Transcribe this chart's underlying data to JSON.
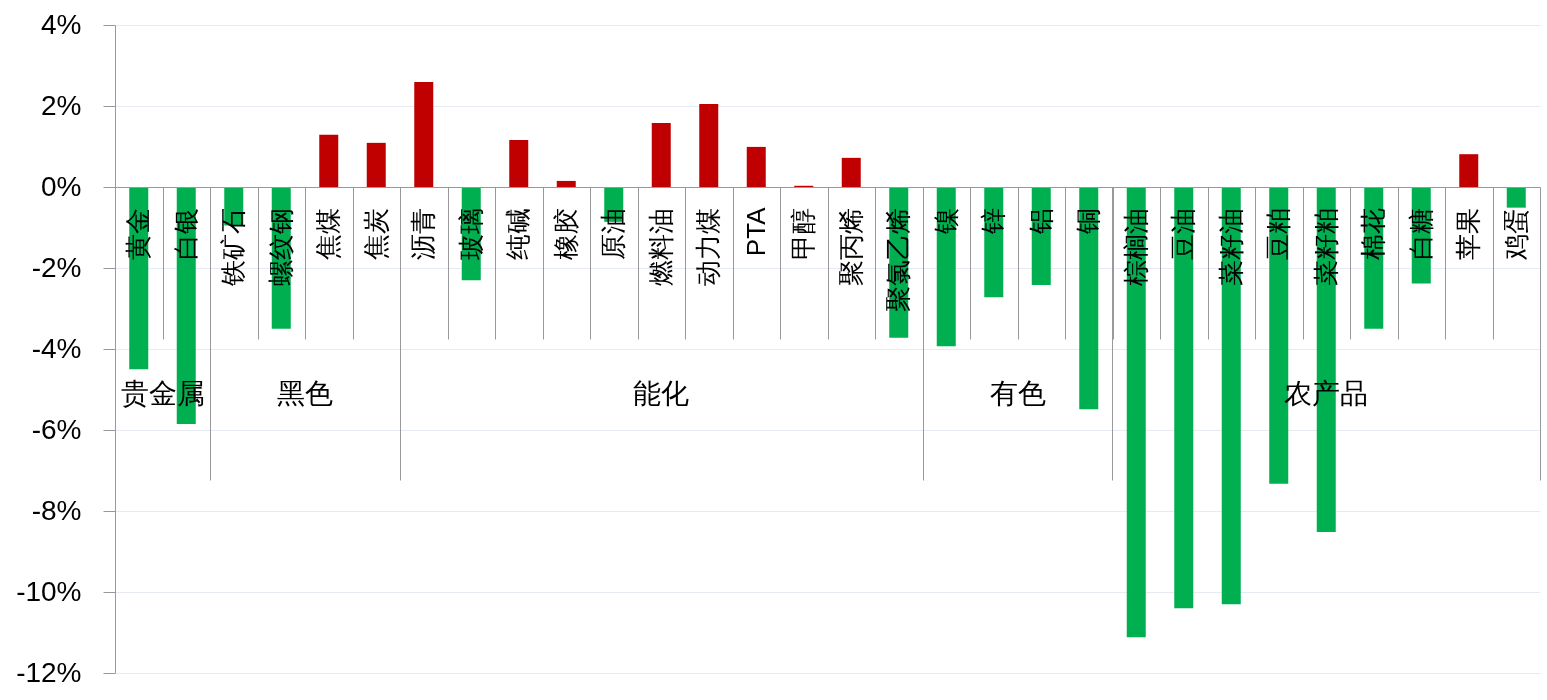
{
  "chart_data": {
    "type": "bar",
    "categories": [
      "黄金",
      "白银",
      "铁矿石",
      "螺纹钢",
      "焦煤",
      "焦炭",
      "沥青",
      "玻璃",
      "纯碱",
      "橡胶",
      "原油",
      "燃料油",
      "动力煤",
      "PTA",
      "甲醇",
      "聚丙烯",
      "聚氯乙烯",
      "镍",
      "锌",
      "铝",
      "铜",
      "棕榈油",
      "豆油",
      "菜籽油",
      "豆粕",
      "菜籽粕",
      "棉花",
      "白糖",
      "苹果",
      "鸡蛋"
    ],
    "values": [
      -4.5,
      -5.85,
      -0.95,
      -3.5,
      1.29,
      1.09,
      2.59,
      -2.3,
      1.16,
      0.15,
      -0.86,
      1.58,
      2.05,
      0.99,
      0.03,
      0.72,
      -3.72,
      -3.93,
      -2.72,
      -2.42,
      -5.49,
      -11.12,
      -10.4,
      -10.3,
      -7.33,
      -8.52,
      -3.5,
      -2.38,
      0.81,
      -0.51
    ],
    "colors": [
      "#00b050",
      "#00b050",
      "#00b050",
      "#00b050",
      "#c00000",
      "#c00000",
      "#c00000",
      "#00b050",
      "#c00000",
      "#c00000",
      "#00b050",
      "#c00000",
      "#c00000",
      "#c00000",
      "#c00000",
      "#c00000",
      "#00b050",
      "#00b050",
      "#00b050",
      "#00b050",
      "#00b050",
      "#00b050",
      "#00b050",
      "#00b050",
      "#00b050",
      "#00b050",
      "#00b050",
      "#00b050",
      "#c00000",
      "#00b050"
    ],
    "ylim": [
      -12,
      4
    ],
    "yticks": [
      {
        "value": -12,
        "label": "-12%"
      },
      {
        "value": -10,
        "label": "-10%"
      },
      {
        "value": -8,
        "label": "-8%"
      },
      {
        "value": -6,
        "label": "-6%"
      },
      {
        "value": -4,
        "label": "-4%"
      },
      {
        "value": -2,
        "label": "-2%"
      },
      {
        "value": 0,
        "label": "0%"
      },
      {
        "value": 2,
        "label": "2%"
      },
      {
        "value": 4,
        "label": "4%"
      }
    ],
    "grid": "y",
    "annotations": [
      "贵金属",
      "黑色",
      "能化",
      "有色",
      "农产品"
    ]
  }
}
